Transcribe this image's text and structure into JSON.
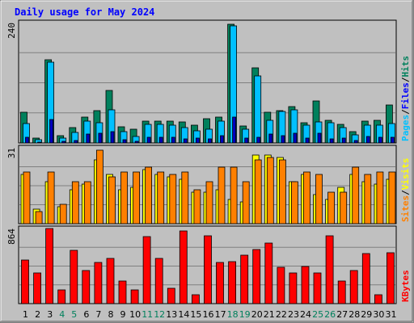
{
  "chart_data": {
    "type": "bar",
    "title": "Daily usage for May 2024",
    "categories": [
      "1",
      "2",
      "3",
      "4",
      "5",
      "6",
      "7",
      "8",
      "9",
      "10",
      "11",
      "12",
      "13",
      "14",
      "15",
      "16",
      "17",
      "18",
      "19",
      "20",
      "21",
      "22",
      "23",
      "24",
      "25",
      "26",
      "27",
      "28",
      "29",
      "30",
      "31"
    ],
    "weekend_days": [
      4,
      5,
      11,
      12,
      18,
      19,
      25,
      26
    ],
    "colors": {
      "background": "#c0c0c0",
      "title": "#0000ff",
      "hits": "#00805c",
      "files": "#00c0ff",
      "pages": "#00e0ff",
      "visits": "#ffff00",
      "sites": "#ff8000",
      "kbytes": "#ff0000",
      "weekend_label": "#00805c",
      "weekday_label": "#000000",
      "gridline": "#808080"
    },
    "panels": [
      {
        "id": "hits_files_pages",
        "ymax_label": "240",
        "ylim": [
          0,
          240
        ],
        "side_labels": [
          "Pages",
          "Files",
          "Hits"
        ],
        "side_label_colors": [
          "#00c0ff",
          "#0000ff",
          "#00805c"
        ],
        "series": [
          {
            "name": "Hits",
            "color": "#00805c",
            "values": [
              61,
              9,
              166,
              15,
              31,
              51,
              65,
              104,
              33,
              27,
              44,
              44,
              44,
              42,
              36,
              48,
              52,
              237,
              34,
              150,
              62,
              65,
              72,
              41,
              84,
              45,
              37,
              22,
              44,
              45,
              76
            ]
          },
          {
            "name": "Files",
            "color": "#00c0ff",
            "values": [
              38,
              7,
              161,
              10,
              21,
              44,
              41,
              66,
              22,
              13,
              37,
              37,
              35,
              31,
              24,
              28,
              43,
              233,
              27,
              133,
              45,
              63,
              66,
              36,
              42,
              40,
              31,
              16,
              35,
              35,
              39
            ]
          },
          {
            "name": "Pages",
            "color": "#0000c0",
            "values": [
              12,
              2,
              47,
              4,
              5,
              17,
              19,
              22,
              7,
              3,
              12,
              11,
              12,
              8,
              9,
              8,
              14,
              51,
              10,
              12,
              17,
              15,
              19,
              10,
              20,
              8,
              10,
              5,
              13,
              12,
              11
            ]
          }
        ]
      },
      {
        "id": "visits_sites",
        "ymax_label": "31",
        "ylim": [
          0,
          31
        ],
        "side_labels": [
          "Sites",
          "Visits"
        ],
        "side_label_colors": [
          "#ff8000",
          "#ffff00"
        ],
        "series": [
          {
            "name": "Visits",
            "color": "#ffff00",
            "values": [
              20,
              6,
              17,
              7,
              14,
              16,
              26,
              20,
              14,
              15,
              22,
              20,
              19,
              18,
              13,
              13,
              14,
              10,
              9,
              28,
              28,
              27,
              17,
              20,
              12,
              10,
              15,
              20,
              17,
              16,
              18
            ]
          },
          {
            "name": "Sites",
            "color": "#ff8000",
            "values": [
              21,
              5,
              21,
              8,
              17,
              17,
              30,
              19,
              21,
              21,
              23,
              21,
              20,
              21,
              14,
              17,
              23,
              23,
              17,
              26,
              27,
              26,
              17,
              21,
              20,
              13,
              13,
              23,
              20,
              21,
              21
            ]
          }
        ]
      },
      {
        "id": "kbytes",
        "ymax_label": "864",
        "ylim": [
          0,
          864
        ],
        "side_labels": [
          "KBytes"
        ],
        "side_label_colors": [
          "#ff0000"
        ],
        "series": [
          {
            "name": "KBytes",
            "color": "#ff0000",
            "values": [
              498,
              349,
              864,
              155,
              609,
              384,
              470,
              521,
              263,
              160,
              768,
              516,
              176,
              838,
              100,
              779,
              473,
              483,
              559,
              627,
              698,
              419,
              357,
              429,
              349,
              779,
              263,
              384,
              574,
              100,
              589
            ]
          }
        ]
      }
    ]
  }
}
